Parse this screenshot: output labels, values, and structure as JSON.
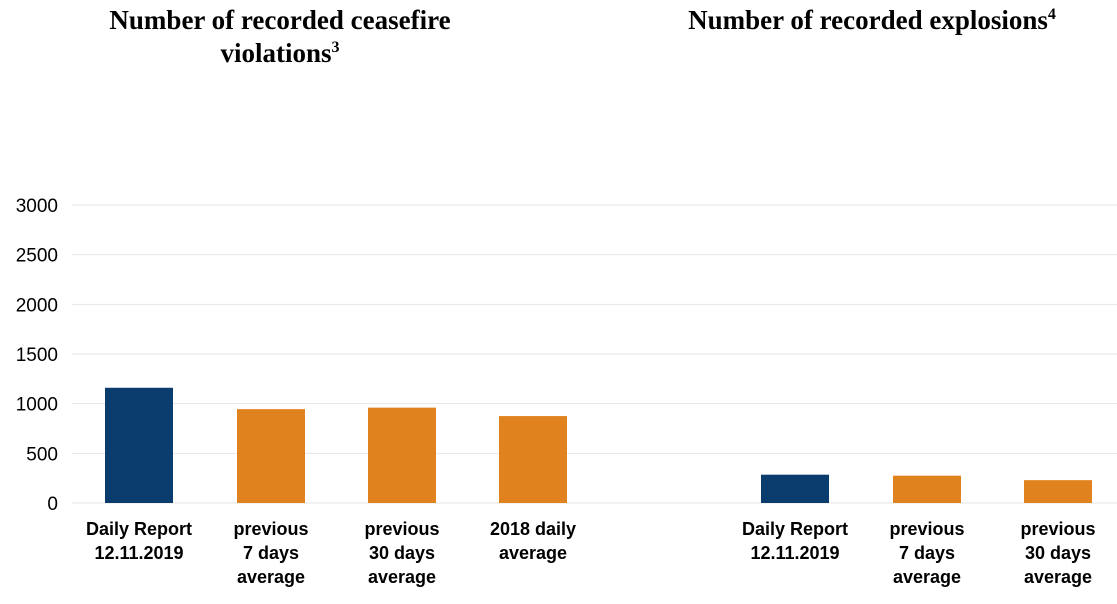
{
  "titles": {
    "left": {
      "text": "Number of recorded ceasefire violations",
      "sup": "3"
    },
    "right": {
      "text": "Number of recorded explosions",
      "sup": "4"
    }
  },
  "colors": {
    "current": "#0a3d6e",
    "comparison": "#e0821e",
    "grid": "#e6e6e6"
  },
  "chart_data": [
    {
      "type": "bar",
      "title": "Number of recorded ceasefire violations",
      "categories": [
        [
          "Daily Report",
          "12.11.2019"
        ],
        [
          "previous",
          "7 days",
          "average"
        ],
        [
          "previous",
          "30 days",
          "average"
        ],
        [
          "2018 daily",
          "average"
        ]
      ],
      "values": [
        1160,
        945,
        960,
        875
      ],
      "highlight": [
        true,
        false,
        false,
        false
      ],
      "ylim": [
        0,
        3000
      ],
      "yticks": [
        0,
        500,
        1000,
        1500,
        2000,
        2500,
        3000
      ],
      "grid": true
    },
    {
      "type": "bar",
      "title": "Number of recorded explosions",
      "categories": [
        [
          "Daily Report",
          "12.11.2019"
        ],
        [
          "previous",
          "7 days",
          "average"
        ],
        [
          "previous",
          "30 days",
          "average"
        ]
      ],
      "values": [
        285,
        275,
        230
      ],
      "highlight": [
        true,
        false,
        false
      ],
      "ylim": [
        0,
        3000
      ],
      "grid": true
    }
  ]
}
